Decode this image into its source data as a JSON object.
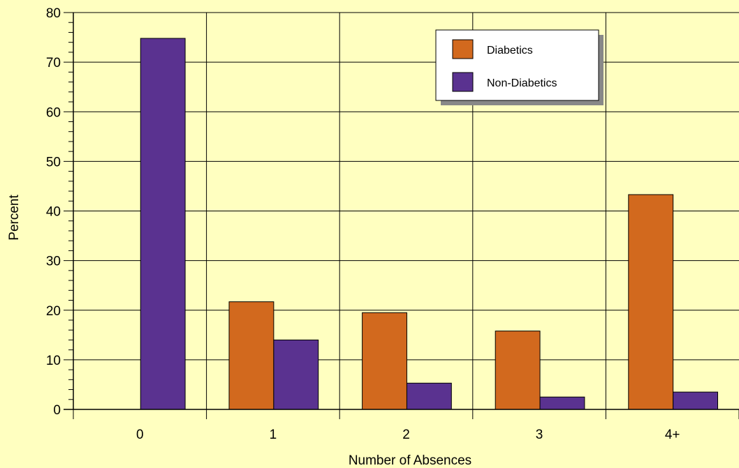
{
  "chart_data": {
    "type": "bar",
    "categories": [
      "0",
      "1",
      "2",
      "3",
      "4+"
    ],
    "series": [
      {
        "name": "Diabetics",
        "values": [
          0,
          21.7,
          19.5,
          15.8,
          43.3
        ],
        "color": "#d2691e"
      },
      {
        "name": "Non-Diabetics",
        "values": [
          74.8,
          14.0,
          5.3,
          2.5,
          3.5
        ],
        "color": "#5a3290"
      }
    ],
    "xlabel": "Number of Absences",
    "ylabel": "Percent",
    "ylim": [
      0,
      80
    ],
    "yticks": [
      "0",
      "10",
      "20",
      "30",
      "40",
      "50",
      "60",
      "70",
      "80"
    ],
    "grid": true,
    "legend_position": "top-right",
    "background": "#ffffc0"
  }
}
